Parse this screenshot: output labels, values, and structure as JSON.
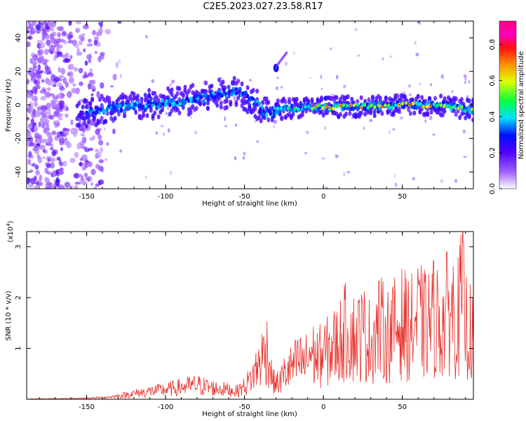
{
  "title": "C2E5.2023.027.23.58.R17",
  "chart_data": [
    {
      "type": "heatmap",
      "name": "spectrogram",
      "xlabel": "Height of straight line (km)",
      "ylabel": "Frequency (Hz)",
      "xlim": [
        -188,
        95
      ],
      "ylim": [
        -50,
        50
      ],
      "xticks": [
        -150,
        -100,
        -50,
        0,
        50
      ],
      "yticks": [
        -40,
        -20,
        0,
        20,
        40
      ],
      "colorbar": {
        "label": "Normalized spectral amplitude",
        "range": [
          0.0,
          0.93
        ],
        "ticks": [
          0.0,
          0.2,
          0.4,
          0.6,
          0.8
        ],
        "colormap": [
          "#ffffff",
          "#7f00ff",
          "#0000ff",
          "#00ffff",
          "#00ff00",
          "#ffff00",
          "#ff7f00",
          "#ff0000",
          "#ff00ff",
          "#ff007f"
        ]
      },
      "ridge": [
        {
          "x": -150,
          "y": -4,
          "amp": 0.35
        },
        {
          "x": -130,
          "y": -2,
          "amp": 0.4
        },
        {
          "x": -110,
          "y": 0,
          "amp": 0.35
        },
        {
          "x": -90,
          "y": 2,
          "amp": 0.4
        },
        {
          "x": -70,
          "y": 5,
          "amp": 0.35
        },
        {
          "x": -55,
          "y": 9,
          "amp": 0.3
        },
        {
          "x": -45,
          "y": 3,
          "amp": 0.3
        },
        {
          "x": -37,
          "y": -5,
          "amp": 0.3
        },
        {
          "x": -30,
          "y": 22,
          "amp": 0.15
        },
        {
          "x": -25,
          "y": -2,
          "amp": 0.45
        },
        {
          "x": 0,
          "y": -1,
          "amp": 0.6
        },
        {
          "x": 25,
          "y": -1,
          "amp": 0.6
        },
        {
          "x": 50,
          "y": 0,
          "amp": 0.65
        },
        {
          "x": 75,
          "y": 0,
          "amp": 0.6
        },
        {
          "x": 92,
          "y": -3,
          "amp": 0.55
        }
      ]
    },
    {
      "type": "line",
      "name": "snr",
      "xlabel": "Height of straight line (km)",
      "ylabel": "SNR (10 * v/v)",
      "yscale_note": "(x10",
      "yscale_exp": "4",
      "xlim": [
        -188,
        95
      ],
      "ylim": [
        0,
        3.3
      ],
      "xticks": [
        -150,
        -100,
        -50,
        0,
        50
      ],
      "yticks": [
        1,
        2,
        3
      ],
      "color": "#e8322d",
      "x": [
        -188,
        -160,
        -140,
        -130,
        -120,
        -110,
        -100,
        -90,
        -80,
        -70,
        -60,
        -55,
        -50,
        -45,
        -40,
        -36,
        -32,
        -28,
        -25,
        -20,
        -15,
        -12,
        -8,
        -5,
        0,
        5,
        10,
        15,
        20,
        25,
        30,
        35,
        40,
        45,
        50,
        55,
        60,
        65,
        70,
        75,
        80,
        85,
        88,
        90,
        93,
        95
      ],
      "y": [
        0.01,
        0.02,
        0.05,
        0.1,
        0.18,
        0.25,
        0.3,
        0.38,
        0.45,
        0.35,
        0.3,
        0.25,
        0.4,
        0.7,
        1.2,
        1.65,
        0.55,
        0.5,
        0.8,
        1.0,
        1.2,
        1.1,
        1.5,
        1.3,
        1.4,
        1.6,
        1.8,
        2.2,
        1.9,
        2.1,
        1.8,
        2.3,
        2.0,
        2.2,
        2.4,
        2.2,
        2.5,
        2.3,
        2.6,
        2.3,
        2.9,
        2.5,
        3.3,
        2.4,
        2.1,
        1.8
      ]
    }
  ]
}
